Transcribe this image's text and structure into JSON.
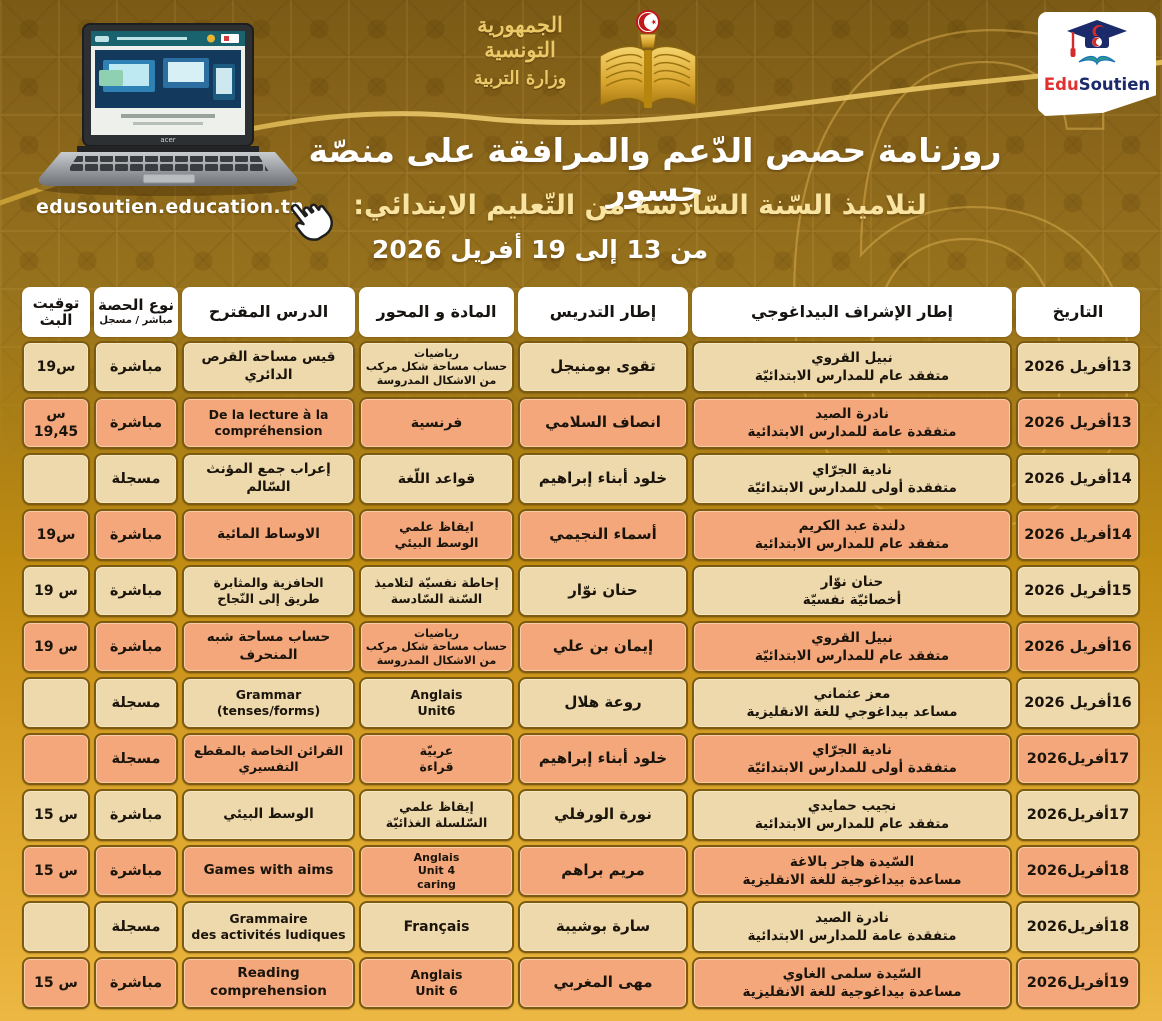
{
  "header": {
    "url": "edusoutien.education.tn",
    "ministry_line1": "الجمهورية التونسية",
    "ministry_line2": "وزارة التربية",
    "logo": {
      "edu": "Edu",
      "soutien": "Soutien"
    },
    "title": "روزنامة حصص الدّعم والمرافقة على منصّة جسور",
    "subtitle": "لتلاميذ السّنة السّادسة من التّعليم الابتدائي:",
    "date_range": "من 13 إلى 19 أفريل 2026",
    "watermark": "6"
  },
  "table": {
    "columns": [
      {
        "key": "date",
        "label": "التاريخ"
      },
      {
        "key": "supervision",
        "label": "إطار الإشراف البيداغوجي"
      },
      {
        "key": "teacher",
        "label": "إطار التدريس"
      },
      {
        "key": "subject",
        "label": "المادة و المحور"
      },
      {
        "key": "lesson",
        "label": "الدرس المقترح"
      },
      {
        "key": "type",
        "label": "نوع الحصة",
        "sublabel": "مباشر / مسجل"
      },
      {
        "key": "time",
        "label": "توقيت البث"
      }
    ],
    "rows": [
      {
        "tone": "tan",
        "date": "13أفريل 2026",
        "supervision": [
          "نبيل القروي",
          "متفقد عام للمدارس الابتدائيّة"
        ],
        "teacher": "تقوى بومنيجل",
        "subject": [
          "رياضيات",
          "حساب مساحة شكل مركب",
          "من الاشكال المدروسة"
        ],
        "lesson": [
          "قيس مساحة القرص الدائري"
        ],
        "type": "مباشرة",
        "time": "س19"
      },
      {
        "tone": "salmon",
        "date": "13أفريل 2026",
        "supervision": [
          "نادرة الصيد",
          "متفقدة عامة للمدارس الابتدائية"
        ],
        "teacher": "انصاف السلامي",
        "subject": [
          "فرنسية"
        ],
        "lesson": [
          "De la lecture à la",
          "compréhension"
        ],
        "type": "مباشرة",
        "time": "س 19,45"
      },
      {
        "tone": "tan",
        "date": "14أفريل 2026",
        "supervision": [
          "نادية الجرّاي",
          "متفقدة أولى للمدارس الابتدائيّة"
        ],
        "teacher": "خلود أبناء إبراهيم",
        "subject": [
          "قواعد اللّغة"
        ],
        "lesson": [
          "إعراب جمع المؤنث السّالم"
        ],
        "type": "مسجلة",
        "time": ""
      },
      {
        "tone": "salmon",
        "date": "14أفريل 2026",
        "supervision": [
          "دلندة عبد الكريم",
          "متفقد عام للمدارس الابتدائية"
        ],
        "teacher": "أسماء النجيمي",
        "subject": [
          "ايقاظ علمي",
          "الوسط البيئي"
        ],
        "lesson": [
          "الاوساط المائية"
        ],
        "type": "مباشرة",
        "time": "س19"
      },
      {
        "tone": "tan",
        "date": "15أفريل 2026",
        "supervision": [
          "حنان نوّار",
          "أخصائيّة نفسيّة"
        ],
        "teacher": "حنان نوّار",
        "subject": [
          "إحاطة نفسيّة لتلاميذ",
          "السّنة السّادسة"
        ],
        "lesson": [
          "الحافزية والمثابرة",
          "طريق إلى النّجاح"
        ],
        "type": "مباشرة",
        "time": "س 19"
      },
      {
        "tone": "salmon",
        "date": "16أفريل 2026",
        "supervision": [
          "نبيل القروي",
          "متفقد عام للمدارس الابتدائيّة"
        ],
        "teacher": "إيمان بن علي",
        "subject": [
          "رياضيات",
          "حساب مساحة شكل مركب",
          "من الاشكال المدروسة"
        ],
        "lesson": [
          "حساب مساحة شبه المنحرف"
        ],
        "type": "مباشرة",
        "time": "س 19"
      },
      {
        "tone": "tan",
        "date": "16أفريل 2026",
        "supervision": [
          "معز عثماني",
          "مساعد بيداغوجي للغة الانقليزية"
        ],
        "teacher": "روعة هلال",
        "subject": [
          "Anglais",
          "Unit6"
        ],
        "lesson": [
          "Grammar",
          "(tenses/forms)"
        ],
        "type": "مسجلة",
        "time": ""
      },
      {
        "tone": "salmon",
        "date": "17أفريل2026",
        "supervision": [
          "نادية الجرّاي",
          "متفقدة أولى للمدارس الابتدائيّة"
        ],
        "teacher": "خلود أبناء إبراهيم",
        "subject": [
          "عربيّة",
          "قراءة"
        ],
        "lesson": [
          "القرائن الخاصة بالمقطع",
          "التفسيري"
        ],
        "type": "مسجلة",
        "time": ""
      },
      {
        "tone": "tan",
        "date": "17أفريل2026",
        "supervision": [
          "نجيب حمايدي",
          "متفقد عام للمدارس الابتدائية"
        ],
        "teacher": "نورة الورفلي",
        "subject": [
          "إيقاظ علمي",
          "السّلسلة الغذائيّة"
        ],
        "lesson": [
          "الوسط البيئي"
        ],
        "type": "مباشرة",
        "time": "س 15"
      },
      {
        "tone": "salmon",
        "date": "18أفريل2026",
        "supervision": [
          "السّيدة هاجر بالاغة",
          "مساعدة بيداغوجية للغة الانقليزية"
        ],
        "teacher": "مريم براهم",
        "subject": [
          "Anglais",
          "Unit 4",
          "caring"
        ],
        "lesson": [
          "Games with aims"
        ],
        "type": "مباشرة",
        "time": "س 15"
      },
      {
        "tone": "tan",
        "date": "18أفريل2026",
        "supervision": [
          "نادرة الصيد",
          "متفقدة عامة للمدارس الابتدائية"
        ],
        "teacher": "سارة بوشيبة",
        "subject": [
          "Français"
        ],
        "lesson": [
          "Grammaire",
          "des activités ludiques"
        ],
        "type": "مسجلة",
        "time": ""
      },
      {
        "tone": "salmon",
        "date": "19أفريل2026",
        "supervision": [
          "السّيدة سلمى الغاوي",
          "مساعدة بيداغوجية للغة الانقليزية"
        ],
        "teacher": "مهى المغربي",
        "subject": [
          "Anglais",
          "Unit 6"
        ],
        "lesson": [
          "Reading comprehension"
        ],
        "type": "مباشرة",
        "time": "س 15"
      }
    ]
  },
  "colors": {
    "background_top": "#7a5a15",
    "background_bottom": "#ecb843",
    "cell_tan": "#eed9ad",
    "cell_salmon": "#f4a77b",
    "cell_border": "#7c5b11",
    "header_cell": "#ffffff",
    "title": "#ffffff",
    "subtitle_gold": "#f9e4a1",
    "logo_red": "#e03131",
    "logo_navy": "#1b2a6b"
  }
}
